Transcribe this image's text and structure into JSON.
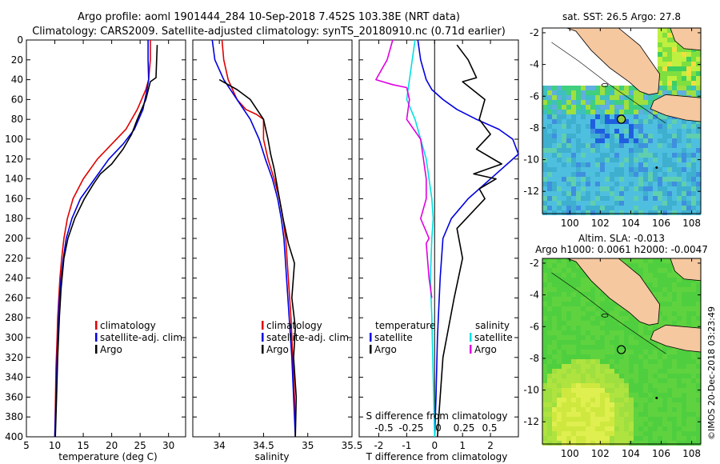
{
  "header": {
    "line1": "Argo profile: aoml 1901444_284 10-Sep-2018 7.452S 103.38E (NRT data)",
    "line2": "Climatology: CARS2009. Satellite-adjusted climatology: synTS_20180910.nc (0.71d earlier)"
  },
  "colors": {
    "climatology": "#e00000",
    "satellite": "#0000e0",
    "argo": "#000000",
    "sal_satellite": "#00e0e0",
    "sal_argo": "#e000e0",
    "land": "#f5c8a0"
  },
  "chart_data": [
    {
      "type": "line",
      "id": "temperature",
      "xlabel": "temperature (deg C)",
      "ylabel": "",
      "xlim": [
        5,
        33
      ],
      "ylim": [
        400,
        0
      ],
      "xticks": [
        5,
        10,
        15,
        20,
        25,
        30
      ],
      "yticks": [
        0,
        20,
        40,
        60,
        80,
        100,
        120,
        140,
        160,
        180,
        200,
        220,
        240,
        260,
        280,
        300,
        320,
        340,
        360,
        380,
        400
      ],
      "legend": [
        "climatology",
        "satellite-adj. clim.",
        "Argo"
      ],
      "series": [
        {
          "name": "climatology",
          "color": "#e00000",
          "x": [
            26.8,
            26.8,
            26.5,
            26.0,
            24.5,
            22.5,
            20.0,
            17.5,
            15.0,
            13.2,
            12.2,
            11.6,
            11.2,
            10.9,
            10.7,
            10.5,
            10.4,
            10.2,
            10.1,
            10.0
          ],
          "y": [
            0,
            20,
            40,
            50,
            70,
            90,
            105,
            120,
            140,
            160,
            180,
            200,
            220,
            240,
            260,
            280,
            300,
            330,
            370,
            400
          ]
        },
        {
          "name": "satellite-adj. clim.",
          "color": "#0000e0",
          "x": [
            26.4,
            26.4,
            26.5,
            26.2,
            25.5,
            24.0,
            22.0,
            19.5,
            17.0,
            14.5,
            13.0,
            12.0,
            11.5,
            11.1,
            10.8,
            10.6,
            10.4,
            10.2,
            10.0
          ],
          "y": [
            0,
            20,
            40,
            50,
            70,
            90,
            105,
            120,
            140,
            160,
            180,
            200,
            220,
            240,
            260,
            290,
            320,
            360,
            400
          ]
        },
        {
          "name": "Argo",
          "color": "#000000",
          "x": [
            28.0,
            27.9,
            27.8,
            26.8,
            26.0,
            24.5,
            23.5,
            22.0,
            20.0,
            18.0,
            16.8,
            15.2,
            13.5,
            12.3,
            11.6,
            11.1,
            10.8,
            10.5,
            10.3,
            10.1
          ],
          "y": [
            5,
            20,
            38,
            42,
            60,
            80,
            95,
            110,
            125,
            135,
            145,
            160,
            180,
            200,
            220,
            250,
            280,
            320,
            360,
            400
          ]
        }
      ]
    },
    {
      "type": "line",
      "id": "salinity",
      "xlabel": "salinity",
      "xlim": [
        33.7,
        35.5
      ],
      "ylim": [
        400,
        0
      ],
      "xticks": [
        34,
        34.5,
        35,
        35.5
      ],
      "legend": [
        "climatology",
        "satellite-adj. clim.",
        "Argo"
      ],
      "series": [
        {
          "name": "climatology",
          "color": "#e00000",
          "x": [
            34.03,
            34.05,
            34.1,
            34.2,
            34.3,
            34.42,
            34.5,
            34.5,
            34.55,
            34.62,
            34.68,
            34.72,
            34.75,
            34.78,
            34.81,
            34.83,
            34.85,
            34.86
          ],
          "y": [
            0,
            20,
            40,
            60,
            70,
            75,
            80,
            100,
            120,
            140,
            160,
            180,
            200,
            240,
            280,
            320,
            360,
            400
          ]
        },
        {
          "name": "satellite-adj. clim.",
          "color": "#0000e0",
          "x": [
            33.92,
            33.95,
            34.05,
            34.2,
            34.35,
            34.45,
            34.52,
            34.6,
            34.66,
            34.7,
            34.73,
            34.76,
            34.79,
            34.82,
            34.84,
            34.86
          ],
          "y": [
            0,
            20,
            40,
            60,
            80,
            100,
            120,
            140,
            160,
            180,
            200,
            240,
            280,
            320,
            360,
            400
          ]
        },
        {
          "name": "Argo",
          "color": "#000000",
          "x": [
            34.0,
            34.1,
            34.2,
            34.35,
            34.5,
            34.55,
            34.58,
            34.62,
            34.65,
            34.68,
            34.72,
            34.78,
            34.85,
            34.82,
            34.86,
            34.84,
            34.87,
            34.86
          ],
          "y": [
            40,
            45,
            50,
            60,
            80,
            100,
            115,
            130,
            145,
            160,
            180,
            205,
            225,
            260,
            290,
            320,
            360,
            400
          ]
        }
      ]
    },
    {
      "type": "line",
      "id": "difference",
      "xlabel": "T difference from climatology",
      "xlim": [
        -2.7,
        3.0
      ],
      "ylim": [
        400,
        0
      ],
      "xticks": [
        -2,
        -1,
        0,
        1,
        2
      ],
      "top_label": "S difference from climatology",
      "top_ticks": [
        "-0.5",
        "-0.25",
        "0",
        "0.25",
        "0.5"
      ],
      "legend_temperature_title": "temperature",
      "legend_salinity_title": "salinity",
      "legend_temperature": [
        "satellite",
        "Argo"
      ],
      "legend_salinity": [
        "satellite",
        "Argo"
      ],
      "series": [
        {
          "name": "T satellite",
          "color": "#0000e0",
          "x": [
            -0.6,
            -0.5,
            -0.3,
            -0.1,
            0.3,
            0.8,
            1.5,
            2.3,
            2.8,
            3.0,
            2.4,
            1.2,
            0.6,
            0.3,
            0.2,
            0.1,
            0.05,
            0.0
          ],
          "y": [
            0,
            20,
            40,
            50,
            60,
            70,
            80,
            90,
            100,
            115,
            130,
            160,
            180,
            200,
            240,
            300,
            360,
            400
          ]
        },
        {
          "name": "T Argo",
          "color": "#000000",
          "x": [
            0.8,
            1.2,
            1.5,
            1.0,
            1.8,
            1.6,
            2.0,
            1.5,
            2.4,
            1.4,
            2.2,
            1.6,
            1.8,
            0.8,
            1.0,
            0.7,
            0.5,
            0.3,
            0.2,
            0.1
          ],
          "y": [
            5,
            20,
            38,
            42,
            60,
            80,
            95,
            110,
            125,
            135,
            140,
            150,
            160,
            190,
            220,
            260,
            290,
            320,
            360,
            400
          ]
        },
        {
          "name": "S satellite",
          "color": "#00e0e0",
          "x": [
            -0.7,
            -0.8,
            -0.9,
            -1.0,
            -0.7,
            -0.5,
            -0.3,
            -0.2,
            -0.1,
            -0.05,
            -0.1,
            -0.15,
            -0.1,
            -0.05,
            0.0
          ],
          "y": [
            0,
            20,
            40,
            60,
            80,
            100,
            120,
            140,
            160,
            180,
            200,
            240,
            280,
            340,
            400
          ]
        },
        {
          "name": "S Argo",
          "color": "#e000e0",
          "x": [
            -1.5,
            -1.7,
            -2.0,
            -2.1,
            -1.5,
            -1.0,
            -0.9,
            -1.0,
            -0.5,
            -0.4,
            -0.3,
            -0.3,
            -0.5,
            -0.2,
            -0.3,
            -0.2,
            -0.1
          ],
          "y": [
            0,
            20,
            35,
            40,
            45,
            48,
            60,
            80,
            100,
            120,
            140,
            160,
            180,
            200,
            205,
            240,
            260
          ]
        }
      ]
    },
    {
      "type": "heatmap",
      "id": "sst-map",
      "title": "sat. SST: 26.5 Argo: 27.8",
      "xlim": [
        98.2,
        108.6
      ],
      "ylim": [
        -13.4,
        -1.7
      ],
      "xticks": [
        100,
        102,
        104,
        106,
        108
      ],
      "yticks": [
        -2,
        -4,
        -6,
        -8,
        -10,
        -12
      ],
      "marker": {
        "lon": 103.38,
        "lat": -7.452
      }
    },
    {
      "type": "heatmap",
      "id": "sla-map",
      "title": "Altim. SLA: -0.013",
      "subtitle": "Argo h1000: 0.0061 h2000: -0.0047",
      "xlim": [
        98.2,
        108.6
      ],
      "ylim": [
        -13.4,
        -1.7
      ],
      "xticks": [
        100,
        102,
        104,
        106,
        108
      ],
      "yticks": [
        -2,
        -4,
        -6,
        -8,
        -10,
        -12
      ],
      "marker": {
        "lon": 103.38,
        "lat": -7.452
      }
    }
  ],
  "credit": "©IMOS 20-Dec-2018 03:23:49"
}
